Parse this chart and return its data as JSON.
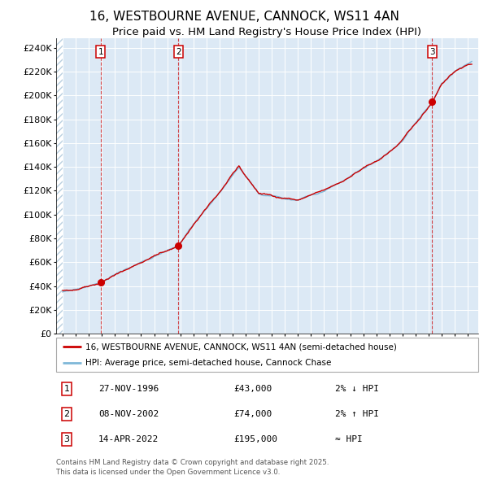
{
  "title": "16, WESTBOURNE AVENUE, CANNOCK, WS11 4AN",
  "subtitle": "Price paid vs. HM Land Registry's House Price Index (HPI)",
  "ylim": [
    0,
    248000
  ],
  "xlim_start": 1993.5,
  "xlim_end": 2025.8,
  "bg_color": "#dce9f5",
  "hatch_color": "#b8cfe0",
  "grid_color": "#ffffff",
  "line1_color": "#cc0000",
  "line2_color": "#7fb8d8",
  "sale_points": [
    {
      "year": 1996.91,
      "price": 43000,
      "label": "1"
    },
    {
      "year": 2002.85,
      "price": 74000,
      "label": "2"
    },
    {
      "year": 2022.28,
      "price": 195000,
      "label": "3"
    }
  ],
  "legend_entries": [
    "16, WESTBOURNE AVENUE, CANNOCK, WS11 4AN (semi-detached house)",
    "HPI: Average price, semi-detached house, Cannock Chase"
  ],
  "table_rows": [
    {
      "num": "1",
      "date": "27-NOV-1996",
      "price": "£43,000",
      "change": "2% ↓ HPI"
    },
    {
      "num": "2",
      "date": "08-NOV-2002",
      "price": "£74,000",
      "change": "2% ↑ HPI"
    },
    {
      "num": "3",
      "date": "14-APR-2022",
      "price": "£195,000",
      "change": "≈ HPI"
    }
  ],
  "footnote": "Contains HM Land Registry data © Crown copyright and database right 2025.\nThis data is licensed under the Open Government Licence v3.0.",
  "title_fontsize": 11,
  "subtitle_fontsize": 9.5
}
